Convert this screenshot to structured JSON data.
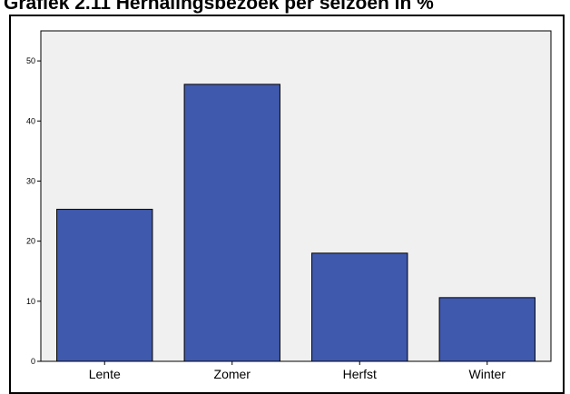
{
  "chart_data": {
    "type": "bar",
    "title": "Grafiek 2.11 Herhalingsbezoek per seizoen in %",
    "categories": [
      "Lente",
      "Zomer",
      "Herfst",
      "Winter"
    ],
    "values": [
      25.3,
      46.1,
      18.0,
      10.6
    ],
    "xlabel": "",
    "ylabel": "",
    "ylim": [
      0,
      55
    ],
    "yticks": [
      0,
      10,
      20,
      30,
      40,
      50
    ],
    "grid": false,
    "colors": {
      "bar_fill": "#3f59ad",
      "bar_stroke": "#000000",
      "plot_background": "#f0f0f0"
    }
  }
}
